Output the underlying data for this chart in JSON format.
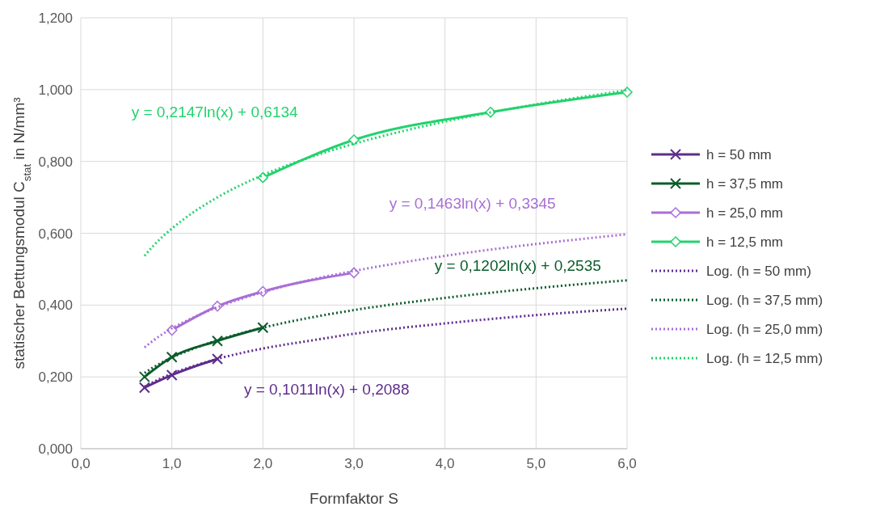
{
  "chart_data": {
    "type": "line",
    "xlabel": "Formfaktor S",
    "ylabel": "statischer Bettungsmodul C$_{stat}$ in N/mm³",
    "xlim": [
      0,
      6
    ],
    "ylim": [
      0,
      1.2
    ],
    "xticks": [
      {
        "value": 0,
        "label": "0,0"
      },
      {
        "value": 1,
        "label": "1,0"
      },
      {
        "value": 2,
        "label": "2,0"
      },
      {
        "value": 3,
        "label": "3,0"
      },
      {
        "value": 4,
        "label": "4,0"
      },
      {
        "value": 5,
        "label": "5,0"
      },
      {
        "value": 6,
        "label": "6,0"
      }
    ],
    "yticks": [
      {
        "value": 0,
        "label": "0,000"
      },
      {
        "value": 0.2,
        "label": "0,200"
      },
      {
        "value": 0.4,
        "label": "0,400"
      },
      {
        "value": 0.6,
        "label": "0,600"
      },
      {
        "value": 0.8,
        "label": "0,800"
      },
      {
        "value": 1,
        "label": "1,000"
      },
      {
        "value": 1.2,
        "label": "1,200"
      }
    ],
    "grid": true,
    "legend": "right",
    "series": [
      {
        "name": "h = 50 mm",
        "color": "#5e2d8c",
        "marker": "cross",
        "line_style": "solid",
        "x": [
          0.7,
          1,
          1.5
        ],
        "values": [
          0.17,
          0.205,
          0.25
        ]
      },
      {
        "name": "h = 37,5 mm",
        "color": "#0b5c2c",
        "marker": "cross",
        "line_style": "solid",
        "x": [
          0.7,
          1,
          1.5,
          2
        ],
        "values": [
          0.2,
          0.255,
          0.3,
          0.337
        ]
      },
      {
        "name": "h = 25,0 mm",
        "color": "#a86fd6",
        "marker": "diamond",
        "line_style": "solid",
        "x": [
          1,
          1.5,
          2,
          3
        ],
        "values": [
          0.33,
          0.397,
          0.438,
          0.49
        ]
      },
      {
        "name": "h = 12,5 mm",
        "color": "#22d36c",
        "marker": "diamond",
        "line_style": "solid",
        "x": [
          2,
          3,
          4.5,
          6
        ],
        "values": [
          0.755,
          0.86,
          0.937,
          0.993
        ]
      },
      {
        "name": "Log. (h = 50 mm)",
        "color": "#5e2d8c",
        "marker": "none",
        "line_style": "dotted",
        "x": [
          0.7,
          0.8,
          1,
          1.2,
          1.5,
          2,
          2.5,
          3,
          4,
          5,
          6
        ],
        "values": [
          0.173,
          0.186,
          0.209,
          0.227,
          0.25,
          0.279,
          0.3,
          0.32,
          0.349,
          0.372,
          0.39
        ]
      },
      {
        "name": "Log. (h = 37,5 mm)",
        "color": "#0b5c2c",
        "marker": "none",
        "line_style": "dotted",
        "x": [
          0.7,
          0.8,
          1,
          1.2,
          1.5,
          2,
          2.5,
          3,
          4,
          5,
          6
        ],
        "values": [
          0.211,
          0.227,
          0.254,
          0.275,
          0.302,
          0.337,
          0.364,
          0.386,
          0.42,
          0.447,
          0.469
        ]
      },
      {
        "name": "Log. (h = 25,0 mm)",
        "color": "#a86fd6",
        "marker": "none",
        "line_style": "dotted",
        "x": [
          0.7,
          0.8,
          1,
          1.2,
          1.5,
          2,
          2.5,
          3,
          4,
          5,
          6
        ],
        "values": [
          0.282,
          0.302,
          0.335,
          0.361,
          0.394,
          0.436,
          0.469,
          0.495,
          0.537,
          0.57,
          0.597
        ]
      },
      {
        "name": "Log. (h = 12,5 mm)",
        "color": "#22d36c",
        "marker": "none",
        "line_style": "dotted",
        "x": [
          0.7,
          0.8,
          1,
          1.2,
          1.5,
          2,
          2.5,
          3,
          4,
          5,
          6
        ],
        "values": [
          0.537,
          0.566,
          0.613,
          0.652,
          0.7,
          0.762,
          0.81,
          0.849,
          0.911,
          0.959,
          0.998
        ]
      }
    ],
    "annotations": [
      "y = 0,2147ln(x) + 0,6134",
      "y = 0,1463ln(x) + 0,3345",
      "y = 0,1202ln(x) + 0,2535",
      "y = 0,1011ln(x) + 0,2088"
    ]
  }
}
